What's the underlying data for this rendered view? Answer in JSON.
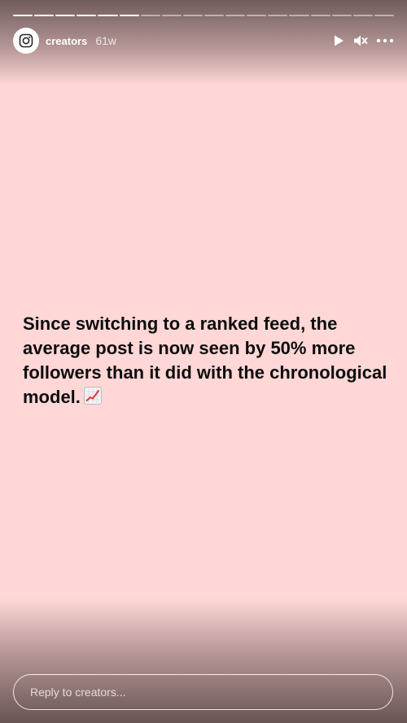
{
  "progress": {
    "total_segments": 18,
    "seen_segments": 6
  },
  "header": {
    "username": "creators",
    "timestamp": "61w"
  },
  "controls": {
    "play_icon": "play-icon",
    "mute_icon": "speaker-muted-icon",
    "more_icon": "more-options-icon"
  },
  "post": {
    "text": "Since switching to a ranked feed, the average post is now seen by 50% more followers than it did with the chronological model.",
    "emoji_icon": "chart-increasing-icon"
  },
  "reply": {
    "placeholder": "Reply to creators..."
  },
  "colors": {
    "background": "#fed7d6",
    "text": "#0d0d0d",
    "overlay_text": "#ffffff"
  }
}
